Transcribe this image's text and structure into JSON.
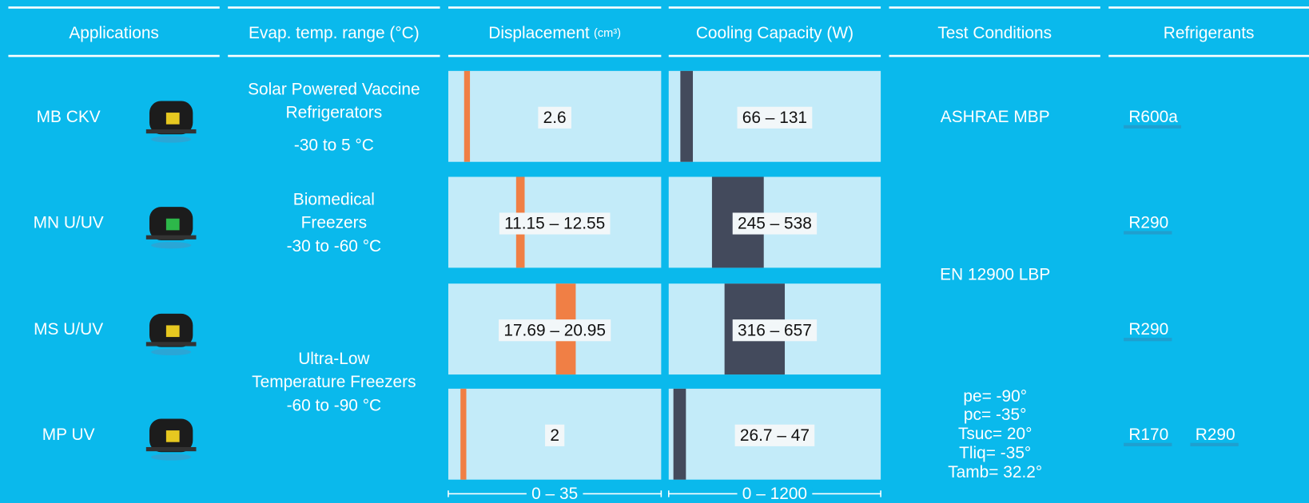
{
  "header": {
    "columns": [
      "Applications",
      "Evap. temp. range (°C)",
      "Displacement",
      "Cooling Capacity (W)",
      "Test Conditions",
      "Refrigerants"
    ],
    "displacement_unit": "(cm³)"
  },
  "rows": [
    {
      "model": "MB CKV",
      "displacement": [
        2.6
      ],
      "displacement_label": "2.6",
      "capacity": [
        66,
        131
      ],
      "capacity_label": "66 – 131",
      "refrigerants": [
        "R600a"
      ]
    },
    {
      "model": "MN U/UV",
      "displacement": [
        11.15,
        12.55
      ],
      "displacement_label": "11.15 – 12.55",
      "capacity": [
        245,
        538
      ],
      "capacity_label": "245 – 538",
      "refrigerants": [
        "R290"
      ]
    },
    {
      "model": "MS U/UV",
      "displacement": [
        17.69,
        20.95
      ],
      "displacement_label": "17.69 – 20.95",
      "capacity": [
        316,
        657
      ],
      "capacity_label": "316 – 657",
      "refrigerants": [
        "R290"
      ]
    },
    {
      "model": "MP UV",
      "displacement": [
        2
      ],
      "displacement_label": "2",
      "capacity": [
        26.7,
        47
      ],
      "capacity_label": "26.7 – 47",
      "refrigerants": [
        "R170",
        "R290"
      ]
    }
  ],
  "applications": [
    {
      "lines": [
        "Solar Powered Vaccine",
        "Refrigerators"
      ],
      "temp": "-30 to 5 °C"
    },
    {
      "lines": [
        "Biomedical",
        "Freezers"
      ],
      "temp": "-30 to -60 °C"
    },
    {
      "lines": [
        "Ultra-Low",
        "Temperature Freezers"
      ],
      "temp": "-60 to -90 °C"
    }
  ],
  "test_conditions": [
    {
      "lines": [
        "ASHRAE MBP"
      ]
    },
    {
      "lines": [
        "EN 12900 LBP"
      ]
    },
    {
      "lines": [
        "pe= -90°",
        "pc= -35°",
        "Tsuc= 20°",
        "Tliq= -35°",
        "Tamb= 32.2°"
      ]
    }
  ],
  "scales": {
    "displacement": {
      "label": "0 – 35",
      "range": [
        0,
        35
      ]
    },
    "capacity": {
      "label": "0 – 1200",
      "range": [
        0,
        1200
      ]
    }
  }
}
